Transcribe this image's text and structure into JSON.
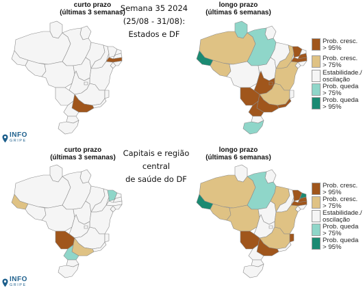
{
  "title": {
    "line1": "Semana 35 2024",
    "line2": "(25/08 - 31/08):",
    "line3": "Estados e DF"
  },
  "subtitle": {
    "line1": "Capitais e região central",
    "line2": "de saúde do DF"
  },
  "panels": {
    "short_term": {
      "line1": "curto prazo",
      "line2": "(últimas 3 semanas)"
    },
    "long_term": {
      "line1": "longo prazo",
      "line2": "(últimas 6 semanas)"
    }
  },
  "legend": {
    "items": [
      {
        "label": "Prob. cresc.\n> 95%",
        "color": "#a0561c"
      },
      {
        "label": "Prob. cresc.\n> 75%",
        "color": "#dfc284"
      },
      {
        "label": "Estabilidade./\noscilação",
        "color": "#f5f5f5"
      },
      {
        "label": "Prob. queda\n> 75%",
        "color": "#8fd6c9"
      },
      {
        "label": "Prob. queda\n> 95%",
        "color": "#1b8a72"
      }
    ]
  },
  "logo": {
    "text": "INFO",
    "subtext": "GRIPE",
    "color": "#1d5f8c"
  },
  "states_maps": {
    "short_term": {
      "RO": "s",
      "AC": "s",
      "AM": "s",
      "RR": "s",
      "PA": "s",
      "AP": "s",
      "TO": "s",
      "MA": "s",
      "PI": "s",
      "CE": "s",
      "RN": "s",
      "PB": "s",
      "PE": "gd",
      "AL": "s",
      "SE": "s",
      "BA": "s",
      "MG": "s",
      "ES": "s",
      "RJ": "s",
      "SP": "gd",
      "PR": "s",
      "SC": "s",
      "RS": "s",
      "MS": "s",
      "MT": "s",
      "GO": "s",
      "DF": "s"
    },
    "long_term": {
      "RO": "gl",
      "AC": "qh",
      "AM": "gl",
      "RR": "ql",
      "PA": "ql",
      "AP": "s",
      "TO": "s",
      "MA": "s",
      "PI": "gl",
      "CE": "gd",
      "RN": "s",
      "PB": "gd",
      "PE": "gd",
      "AL": "s",
      "SE": "s",
      "BA": "gl",
      "MG": "gl",
      "ES": "s",
      "RJ": "gd",
      "SP": "gd",
      "PR": "gd",
      "SC": "s",
      "RS": "ql",
      "MS": "gd",
      "MT": "s",
      "GO": "gd",
      "DF": "gd"
    }
  },
  "capitals_maps": {
    "short_term": {
      "RO": "s",
      "AC": "gl",
      "AM": "s",
      "RR": "s",
      "PA": "s",
      "AP": "s",
      "TO": "s",
      "MA": "s",
      "PI": "s",
      "CE": "ql",
      "RN": "s",
      "PB": "s",
      "PE": "s",
      "AL": "s",
      "SE": "s",
      "BA": "s",
      "MG": "s",
      "ES": "s",
      "RJ": "s",
      "SP": "gl",
      "PR": "ql",
      "SC": "s",
      "RS": "s",
      "MS": "gd",
      "MT": "s",
      "GO": "s",
      "DF": "s"
    },
    "long_term": {
      "RO": "gl",
      "AC": "qh",
      "AM": "gl",
      "RR": "s",
      "PA": "ql",
      "AP": "s",
      "TO": "s",
      "MA": "gl",
      "PI": "s",
      "CE": "gd",
      "RN": "qh",
      "PB": "gd",
      "PE": "gd",
      "AL": "s",
      "SE": "s",
      "BA": "gl",
      "MG": "gl",
      "ES": "gd",
      "RJ": "s",
      "SP": "gd",
      "PR": "s",
      "SC": "s",
      "RS": "s",
      "MS": "gd",
      "MT": "gl",
      "GO": "s",
      "DF": "s"
    }
  },
  "colors": {
    "gd": "#a0561c",
    "gl": "#dfc284",
    "s": "#f5f5f5",
    "ql": "#8fd6c9",
    "qh": "#1b8a72"
  }
}
